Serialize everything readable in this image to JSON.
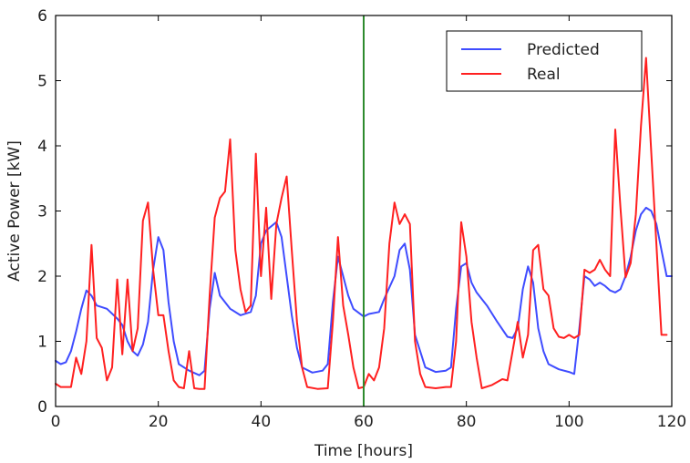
{
  "chart_data": {
    "type": "line",
    "title": "",
    "xlabel": "Time [hours]",
    "ylabel": "Active Power [kW]",
    "xlim": [
      0,
      120
    ],
    "ylim": [
      0,
      6
    ],
    "xticks": [
      0,
      20,
      40,
      60,
      80,
      100,
      120
    ],
    "yticks": [
      0,
      1,
      2,
      3,
      4,
      5,
      6
    ],
    "grid": false,
    "legend_position": "top-right",
    "vertical_marker": {
      "x": 60,
      "color": "#2e8b2e"
    },
    "series": [
      {
        "name": "Predicted",
        "color": "#3f4cff",
        "points": [
          [
            0,
            0.7
          ],
          [
            1,
            0.65
          ],
          [
            2,
            0.68
          ],
          [
            3,
            0.85
          ],
          [
            4,
            1.15
          ],
          [
            5,
            1.5
          ],
          [
            6,
            1.78
          ],
          [
            7,
            1.7
          ],
          [
            8,
            1.55
          ],
          [
            10,
            1.5
          ],
          [
            12,
            1.35
          ],
          [
            13,
            1.25
          ],
          [
            14,
            1.0
          ],
          [
            15,
            0.85
          ],
          [
            16,
            0.78
          ],
          [
            17,
            0.95
          ],
          [
            18,
            1.3
          ],
          [
            19,
            2.1
          ],
          [
            20,
            2.6
          ],
          [
            21,
            2.4
          ],
          [
            22,
            1.6
          ],
          [
            23,
            1.0
          ],
          [
            24,
            0.65
          ],
          [
            26,
            0.55
          ],
          [
            28,
            0.48
          ],
          [
            29,
            0.55
          ],
          [
            30,
            1.5
          ],
          [
            31,
            2.05
          ],
          [
            32,
            1.7
          ],
          [
            34,
            1.5
          ],
          [
            36,
            1.4
          ],
          [
            38,
            1.45
          ],
          [
            39,
            1.7
          ],
          [
            40,
            2.5
          ],
          [
            41,
            2.7
          ],
          [
            43,
            2.83
          ],
          [
            44,
            2.6
          ],
          [
            45,
            2.0
          ],
          [
            46,
            1.4
          ],
          [
            47,
            0.9
          ],
          [
            48,
            0.6
          ],
          [
            50,
            0.52
          ],
          [
            52,
            0.55
          ],
          [
            53,
            0.65
          ],
          [
            54,
            1.6
          ],
          [
            55,
            2.3
          ],
          [
            56,
            2.0
          ],
          [
            57,
            1.7
          ],
          [
            58,
            1.5
          ],
          [
            60,
            1.38
          ],
          [
            61,
            1.42
          ],
          [
            63,
            1.45
          ],
          [
            64,
            1.65
          ],
          [
            66,
            2.0
          ],
          [
            67,
            2.4
          ],
          [
            68,
            2.5
          ],
          [
            69,
            2.1
          ],
          [
            70,
            1.1
          ],
          [
            72,
            0.6
          ],
          [
            74,
            0.53
          ],
          [
            76,
            0.55
          ],
          [
            77,
            0.6
          ],
          [
            78,
            1.5
          ],
          [
            79,
            2.15
          ],
          [
            80,
            2.2
          ],
          [
            81,
            1.9
          ],
          [
            82,
            1.75
          ],
          [
            84,
            1.55
          ],
          [
            86,
            1.3
          ],
          [
            88,
            1.07
          ],
          [
            89,
            1.05
          ],
          [
            90,
            1.2
          ],
          [
            91,
            1.8
          ],
          [
            92,
            2.15
          ],
          [
            93,
            1.9
          ],
          [
            94,
            1.2
          ],
          [
            95,
            0.85
          ],
          [
            96,
            0.65
          ],
          [
            98,
            0.57
          ],
          [
            100,
            0.53
          ],
          [
            101,
            0.5
          ],
          [
            102,
            1.2
          ],
          [
            103,
            2.0
          ],
          [
            104,
            1.95
          ],
          [
            105,
            1.85
          ],
          [
            106,
            1.9
          ],
          [
            107,
            1.85
          ],
          [
            108,
            1.78
          ],
          [
            109,
            1.75
          ],
          [
            110,
            1.8
          ],
          [
            111,
            2.0
          ],
          [
            112,
            2.3
          ],
          [
            113,
            2.7
          ],
          [
            114,
            2.95
          ],
          [
            115,
            3.05
          ],
          [
            116,
            3.0
          ],
          [
            117,
            2.8
          ],
          [
            118,
            2.4
          ],
          [
            119,
            2.0
          ],
          [
            120,
            2.0
          ]
        ]
      },
      {
        "name": "Real",
        "color": "#ff2020",
        "points": [
          [
            0,
            0.35
          ],
          [
            1,
            0.3
          ],
          [
            3,
            0.3
          ],
          [
            4,
            0.75
          ],
          [
            5,
            0.5
          ],
          [
            6,
            1.0
          ],
          [
            7,
            2.48
          ],
          [
            8,
            1.05
          ],
          [
            9,
            0.9
          ],
          [
            10,
            0.4
          ],
          [
            11,
            0.6
          ],
          [
            12,
            1.95
          ],
          [
            13,
            0.8
          ],
          [
            14,
            1.95
          ],
          [
            15,
            0.85
          ],
          [
            16,
            1.2
          ],
          [
            17,
            2.85
          ],
          [
            18,
            3.13
          ],
          [
            19,
            2.1
          ],
          [
            20,
            1.4
          ],
          [
            21,
            1.4
          ],
          [
            22,
            0.85
          ],
          [
            23,
            0.4
          ],
          [
            24,
            0.3
          ],
          [
            25,
            0.28
          ],
          [
            26,
            0.85
          ],
          [
            27,
            0.28
          ],
          [
            28,
            0.27
          ],
          [
            29,
            0.27
          ],
          [
            30,
            1.7
          ],
          [
            31,
            2.9
          ],
          [
            32,
            3.2
          ],
          [
            33,
            3.3
          ],
          [
            34,
            4.1
          ],
          [
            35,
            2.4
          ],
          [
            36,
            1.8
          ],
          [
            37,
            1.45
          ],
          [
            38,
            1.55
          ],
          [
            39,
            3.88
          ],
          [
            40,
            2.0
          ],
          [
            41,
            3.05
          ],
          [
            42,
            1.65
          ],
          [
            43,
            2.8
          ],
          [
            44,
            3.2
          ],
          [
            45,
            3.53
          ],
          [
            46,
            2.4
          ],
          [
            47,
            1.3
          ],
          [
            48,
            0.6
          ],
          [
            49,
            0.3
          ],
          [
            51,
            0.27
          ],
          [
            53,
            0.28
          ],
          [
            54,
            1.3
          ],
          [
            55,
            2.6
          ],
          [
            56,
            1.55
          ],
          [
            57,
            1.1
          ],
          [
            58,
            0.6
          ],
          [
            59,
            0.28
          ],
          [
            60,
            0.3
          ],
          [
            61,
            0.5
          ],
          [
            62,
            0.4
          ],
          [
            63,
            0.6
          ],
          [
            64,
            1.2
          ],
          [
            65,
            2.5
          ],
          [
            66,
            3.13
          ],
          [
            67,
            2.8
          ],
          [
            68,
            2.95
          ],
          [
            69,
            2.8
          ],
          [
            70,
            1.0
          ],
          [
            71,
            0.5
          ],
          [
            72,
            0.3
          ],
          [
            74,
            0.28
          ],
          [
            76,
            0.3
          ],
          [
            77,
            0.3
          ],
          [
            78,
            1.0
          ],
          [
            79,
            2.83
          ],
          [
            80,
            2.3
          ],
          [
            81,
            1.3
          ],
          [
            82,
            0.75
          ],
          [
            83,
            0.28
          ],
          [
            85,
            0.33
          ],
          [
            87,
            0.42
          ],
          [
            88,
            0.4
          ],
          [
            89,
            0.85
          ],
          [
            90,
            1.3
          ],
          [
            91,
            0.75
          ],
          [
            92,
            1.1
          ],
          [
            93,
            2.4
          ],
          [
            94,
            2.48
          ],
          [
            95,
            1.8
          ],
          [
            96,
            1.7
          ],
          [
            97,
            1.2
          ],
          [
            98,
            1.07
          ],
          [
            99,
            1.05
          ],
          [
            100,
            1.1
          ],
          [
            101,
            1.05
          ],
          [
            102,
            1.1
          ],
          [
            103,
            2.1
          ],
          [
            104,
            2.05
          ],
          [
            105,
            2.1
          ],
          [
            106,
            2.25
          ],
          [
            107,
            2.1
          ],
          [
            108,
            2.0
          ],
          [
            109,
            4.25
          ],
          [
            110,
            3.05
          ],
          [
            111,
            1.98
          ],
          [
            112,
            2.2
          ],
          [
            113,
            2.95
          ],
          [
            114,
            4.3
          ],
          [
            115,
            5.35
          ],
          [
            116,
            3.9
          ],
          [
            117,
            2.5
          ],
          [
            118,
            1.1
          ],
          [
            119,
            1.1
          ]
        ]
      }
    ]
  }
}
